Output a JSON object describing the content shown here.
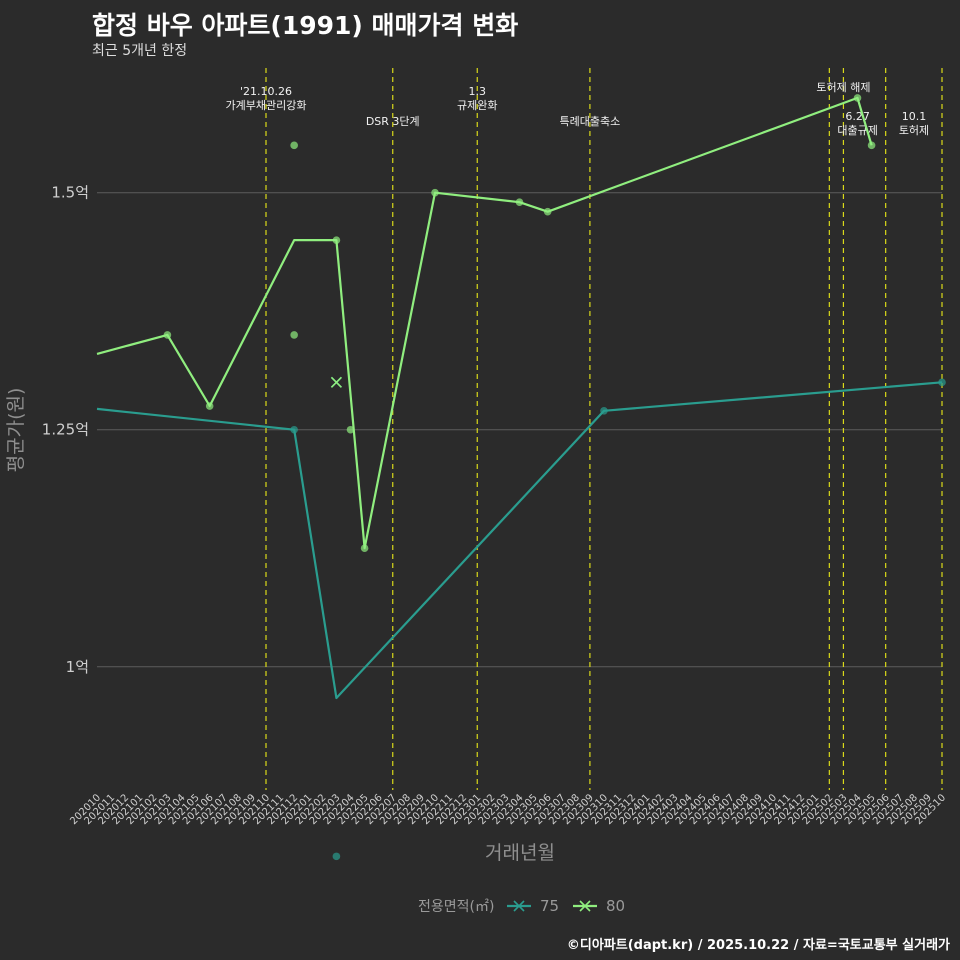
{
  "title": "합정 바우 아파트(1991) 매매가격 변화",
  "subtitle": "최근 5개년 한정",
  "caption": "©디아파트(dapt.kr) / 2025.10.22 / 자료=국토교통부 실거래가",
  "chart_data": {
    "type": "line",
    "xlabel": "거래년월",
    "ylabel": "평균가(원)",
    "ylim": [
      0.87,
      1.64
    ],
    "y_ticks": [
      {
        "value": 1.0,
        "label": "1억"
      },
      {
        "value": 1.25,
        "label": "1.25억"
      },
      {
        "value": 1.5,
        "label": "1.5억"
      }
    ],
    "x_categories": [
      "202010",
      "202011",
      "202012",
      "202101",
      "202102",
      "202103",
      "202104",
      "202105",
      "202106",
      "202107",
      "202108",
      "202109",
      "202110",
      "202111",
      "202112",
      "202201",
      "202202",
      "202203",
      "202204",
      "202205",
      "202206",
      "202207",
      "202208",
      "202209",
      "202210",
      "202211",
      "202212",
      "202301",
      "202302",
      "202303",
      "202304",
      "202305",
      "202306",
      "202307",
      "202308",
      "202309",
      "202310",
      "202311",
      "202312",
      "202401",
      "202402",
      "202403",
      "202404",
      "202405",
      "202406",
      "202407",
      "202408",
      "202409",
      "202410",
      "202411",
      "202412",
      "202501",
      "202502",
      "202503",
      "202504",
      "202505",
      "202506",
      "202507",
      "202508",
      "202509",
      "202510"
    ],
    "legend_title": "전용면적(㎡)",
    "colors": {
      "s75": "#2a9d8f",
      "s80": "#90ee7f",
      "vline": "#d9d91a",
      "grid": "#5c5c5c"
    },
    "series": [
      {
        "name": "75",
        "color": "#2a9d8f",
        "line": [
          [
            "202010",
            1.272
          ],
          [
            "202112",
            1.25
          ],
          [
            "202203",
            0.967
          ],
          [
            "202310",
            1.27
          ],
          [
            "202510",
            1.3
          ]
        ],
        "points": [
          [
            "202112",
            1.25
          ],
          [
            "202203",
            0.8
          ],
          [
            "202310",
            1.27
          ],
          [
            "202510",
            1.3
          ]
        ],
        "crosses": [
          [
            "202203",
            1.3
          ]
        ]
      },
      {
        "name": "80",
        "color": "#90ee7f",
        "line": [
          [
            "202010",
            1.33
          ],
          [
            "202103",
            1.35
          ],
          [
            "202106",
            1.275
          ],
          [
            "202112",
            1.45
          ],
          [
            "202203",
            1.45
          ],
          [
            "202205",
            1.125
          ],
          [
            "202210",
            1.5
          ],
          [
            "202304",
            1.49
          ],
          [
            "202306",
            1.48
          ],
          [
            "202504",
            1.6
          ],
          [
            "202505",
            1.55
          ]
        ],
        "points": [
          [
            "202103",
            1.35
          ],
          [
            "202106",
            1.275
          ],
          [
            "202112",
            1.55
          ],
          [
            "202112",
            1.35
          ],
          [
            "202203",
            1.45
          ],
          [
            "202204",
            1.25
          ],
          [
            "202205",
            1.125
          ],
          [
            "202210",
            1.5
          ],
          [
            "202304",
            1.49
          ],
          [
            "202306",
            1.48
          ],
          [
            "202504",
            1.6
          ],
          [
            "202505",
            1.55
          ]
        ],
        "crosses": [
          [
            "202203",
            1.3
          ]
        ]
      }
    ],
    "events": [
      {
        "x": "202110",
        "lines": [
          "'21.10.26",
          "가계부채관리강화"
        ],
        "row": 0
      },
      {
        "x": "202207",
        "lines": [
          "DSR 3단계"
        ],
        "row": 2
      },
      {
        "x": "202301",
        "lines": [
          "1.3",
          "규제완화"
        ],
        "row": 0
      },
      {
        "x": "202309",
        "lines": [
          "특례대출축소"
        ],
        "row": 2
      },
      {
        "x": "202502",
        "lines": [],
        "row": 0
      },
      {
        "x": "202503",
        "lines": [
          "토허제 해제"
        ],
        "row": 1
      },
      {
        "x": "202506",
        "lines": [
          "6.27",
          "대출규제"
        ],
        "row": 3
      },
      {
        "x": "202510",
        "lines": [
          "10.1",
          "토허제"
        ],
        "row": 3
      }
    ]
  }
}
